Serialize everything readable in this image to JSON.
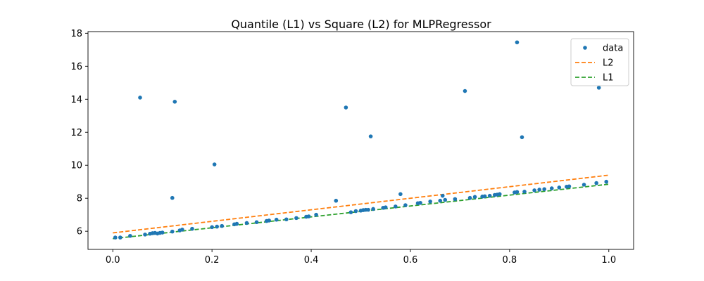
{
  "chart_data": {
    "type": "scatter",
    "title": "Quantile (L1) vs Square (L2) for MLPRegressor",
    "xlabel": "",
    "ylabel": "",
    "xlim": [
      -0.05,
      1.05
    ],
    "ylim": [
      4.9,
      18.1
    ],
    "xticks": [
      0.0,
      0.2,
      0.4,
      0.6,
      0.8,
      1.0
    ],
    "xtick_labels": [
      "0.0",
      "0.2",
      "0.4",
      "0.6",
      "0.8",
      "1.0"
    ],
    "yticks": [
      6,
      8,
      10,
      12,
      14,
      16,
      18
    ],
    "ytick_labels": [
      "6",
      "8",
      "10",
      "12",
      "14",
      "16",
      "18"
    ],
    "grid": false,
    "legend_position": "top-right",
    "series": [
      {
        "name": "data",
        "kind": "points",
        "color": "#1f77b4",
        "points": [
          [
            0.005,
            5.62
          ],
          [
            0.015,
            5.62
          ],
          [
            0.035,
            5.72
          ],
          [
            0.055,
            14.1
          ],
          [
            0.065,
            5.8
          ],
          [
            0.075,
            5.85
          ],
          [
            0.08,
            5.88
          ],
          [
            0.085,
            5.9
          ],
          [
            0.09,
            5.86
          ],
          [
            0.095,
            5.9
          ],
          [
            0.1,
            5.92
          ],
          [
            0.12,
            5.98
          ],
          [
            0.12,
            8.02
          ],
          [
            0.125,
            13.85
          ],
          [
            0.135,
            6.05
          ],
          [
            0.14,
            6.1
          ],
          [
            0.16,
            6.15
          ],
          [
            0.2,
            6.25
          ],
          [
            0.205,
            10.05
          ],
          [
            0.21,
            6.28
          ],
          [
            0.22,
            6.32
          ],
          [
            0.245,
            6.42
          ],
          [
            0.25,
            6.45
          ],
          [
            0.27,
            6.5
          ],
          [
            0.29,
            6.55
          ],
          [
            0.31,
            6.62
          ],
          [
            0.315,
            6.65
          ],
          [
            0.33,
            6.7
          ],
          [
            0.35,
            6.72
          ],
          [
            0.37,
            6.8
          ],
          [
            0.39,
            6.88
          ],
          [
            0.395,
            6.9
          ],
          [
            0.41,
            7.0
          ],
          [
            0.45,
            7.85
          ],
          [
            0.47,
            13.5
          ],
          [
            0.48,
            7.15
          ],
          [
            0.49,
            7.22
          ],
          [
            0.5,
            7.25
          ],
          [
            0.505,
            7.28
          ],
          [
            0.51,
            7.3
          ],
          [
            0.515,
            7.3
          ],
          [
            0.52,
            11.75
          ],
          [
            0.525,
            7.35
          ],
          [
            0.545,
            7.42
          ],
          [
            0.55,
            7.45
          ],
          [
            0.57,
            7.5
          ],
          [
            0.58,
            8.25
          ],
          [
            0.59,
            7.58
          ],
          [
            0.615,
            7.7
          ],
          [
            0.62,
            7.72
          ],
          [
            0.64,
            7.8
          ],
          [
            0.66,
            7.85
          ],
          [
            0.665,
            8.15
          ],
          [
            0.67,
            7.9
          ],
          [
            0.69,
            7.95
          ],
          [
            0.71,
            14.5
          ],
          [
            0.72,
            8.02
          ],
          [
            0.73,
            8.08
          ],
          [
            0.745,
            8.1
          ],
          [
            0.75,
            8.12
          ],
          [
            0.76,
            8.15
          ],
          [
            0.77,
            8.2
          ],
          [
            0.775,
            8.22
          ],
          [
            0.78,
            8.25
          ],
          [
            0.81,
            8.35
          ],
          [
            0.815,
            8.38
          ],
          [
            0.815,
            17.45
          ],
          [
            0.825,
            11.7
          ],
          [
            0.83,
            8.4
          ],
          [
            0.85,
            8.48
          ],
          [
            0.86,
            8.52
          ],
          [
            0.87,
            8.55
          ],
          [
            0.885,
            8.6
          ],
          [
            0.9,
            8.65
          ],
          [
            0.915,
            8.7
          ],
          [
            0.92,
            8.72
          ],
          [
            0.95,
            8.82
          ],
          [
            0.975,
            8.92
          ],
          [
            0.98,
            14.7
          ],
          [
            0.995,
            9.0
          ]
        ]
      },
      {
        "name": "L2",
        "kind": "dashed-line",
        "color": "#ff7f0e",
        "x": [
          0.0,
          1.0
        ],
        "y": [
          5.9,
          9.4
        ]
      },
      {
        "name": "L1",
        "kind": "dashed-line",
        "color": "#2ca02c",
        "x": [
          0.0,
          1.0
        ],
        "y": [
          5.55,
          8.85
        ]
      }
    ]
  }
}
